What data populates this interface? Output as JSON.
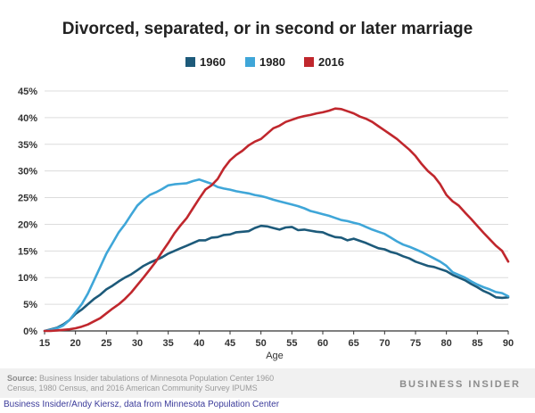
{
  "chart_data": {
    "type": "line",
    "title": "Divorced, separated, or in second or later marriage",
    "xlabel": "Age",
    "ylabel": "",
    "xlim": [
      15,
      90
    ],
    "ylim": [
      0,
      45
    ],
    "xticks": [
      15,
      20,
      25,
      30,
      35,
      40,
      45,
      50,
      55,
      60,
      65,
      70,
      75,
      80,
      85,
      90
    ],
    "yticks": [
      0,
      5,
      10,
      15,
      20,
      25,
      30,
      35,
      40,
      45
    ],
    "ytick_labels": [
      "0%",
      "5%",
      "10%",
      "15%",
      "20%",
      "25%",
      "30%",
      "35%",
      "40%",
      "45%"
    ],
    "legend_position": "top-center",
    "grid": "horizontal",
    "series": [
      {
        "name": "1960",
        "color": "#1d5a7a",
        "x": [
          15,
          16,
          17,
          18,
          19,
          20,
          21,
          22,
          23,
          24,
          25,
          26,
          27,
          28,
          29,
          30,
          31,
          32,
          33,
          34,
          35,
          36,
          37,
          38,
          39,
          40,
          41,
          42,
          43,
          44,
          45,
          46,
          47,
          48,
          49,
          50,
          51,
          52,
          53,
          54,
          55,
          56,
          57,
          58,
          59,
          60,
          61,
          62,
          63,
          64,
          65,
          66,
          67,
          68,
          69,
          70,
          71,
          72,
          73,
          74,
          75,
          76,
          77,
          78,
          79,
          80,
          81,
          82,
          83,
          84,
          85,
          86,
          87,
          88,
          89,
          90
        ],
        "values": [
          0.0,
          0.3,
          0.6,
          1.2,
          2.0,
          3.2,
          4.0,
          5.0,
          6.0,
          6.8,
          7.8,
          8.5,
          9.3,
          10.0,
          10.6,
          11.4,
          12.2,
          12.8,
          13.3,
          13.8,
          14.5,
          15.0,
          15.5,
          16.0,
          16.5,
          17.0,
          17.0,
          17.5,
          17.6,
          18.0,
          18.1,
          18.5,
          18.6,
          18.7,
          19.3,
          19.7,
          19.6,
          19.3,
          19.0,
          19.4,
          19.5,
          18.9,
          19.0,
          18.8,
          18.6,
          18.5,
          18.0,
          17.6,
          17.5,
          17.0,
          17.3,
          16.9,
          16.5,
          16.0,
          15.5,
          15.3,
          14.8,
          14.5,
          14.0,
          13.6,
          13.0,
          12.6,
          12.2,
          12.0,
          11.6,
          11.2,
          10.5,
          10.0,
          9.5,
          8.8,
          8.2,
          7.5,
          7.0,
          6.3,
          6.2,
          6.3
        ]
      },
      {
        "name": "1980",
        "color": "#3fa6d8",
        "x": [
          15,
          16,
          17,
          18,
          19,
          20,
          21,
          22,
          23,
          24,
          25,
          26,
          27,
          28,
          29,
          30,
          31,
          32,
          33,
          34,
          35,
          36,
          37,
          38,
          39,
          40,
          41,
          42,
          43,
          44,
          45,
          46,
          47,
          48,
          49,
          50,
          51,
          52,
          53,
          54,
          55,
          56,
          57,
          58,
          59,
          60,
          61,
          62,
          63,
          64,
          65,
          66,
          67,
          68,
          69,
          70,
          71,
          72,
          73,
          74,
          75,
          76,
          77,
          78,
          79,
          80,
          81,
          82,
          83,
          84,
          85,
          86,
          87,
          88,
          89,
          90
        ],
        "values": [
          0.0,
          0.2,
          0.5,
          1.0,
          2.0,
          3.5,
          5.0,
          7.0,
          9.5,
          12.0,
          14.5,
          16.5,
          18.5,
          20.0,
          21.8,
          23.5,
          24.6,
          25.5,
          26.0,
          26.6,
          27.3,
          27.5,
          27.6,
          27.7,
          28.1,
          28.4,
          28.0,
          27.6,
          27.0,
          26.7,
          26.5,
          26.2,
          26.0,
          25.8,
          25.5,
          25.3,
          25.0,
          24.6,
          24.3,
          24.0,
          23.7,
          23.4,
          23.0,
          22.5,
          22.2,
          21.9,
          21.6,
          21.2,
          20.8,
          20.6,
          20.3,
          20.0,
          19.5,
          19.0,
          18.6,
          18.2,
          17.5,
          16.8,
          16.2,
          15.8,
          15.3,
          14.8,
          14.2,
          13.6,
          13.0,
          12.2,
          11.0,
          10.5,
          10.0,
          9.3,
          8.7,
          8.2,
          7.8,
          7.3,
          7.1,
          6.5
        ]
      },
      {
        "name": "2016",
        "color": "#c0272d",
        "x": [
          15,
          16,
          17,
          18,
          19,
          20,
          21,
          22,
          23,
          24,
          25,
          26,
          27,
          28,
          29,
          30,
          31,
          32,
          33,
          34,
          35,
          36,
          37,
          38,
          39,
          40,
          41,
          42,
          43,
          44,
          45,
          46,
          47,
          48,
          49,
          50,
          51,
          52,
          53,
          54,
          55,
          56,
          57,
          58,
          59,
          60,
          61,
          62,
          63,
          64,
          65,
          66,
          67,
          68,
          69,
          70,
          71,
          72,
          73,
          74,
          75,
          76,
          77,
          78,
          79,
          80,
          81,
          82,
          83,
          84,
          85,
          86,
          87,
          88,
          89,
          90
        ],
        "values": [
          0.0,
          0.0,
          0.1,
          0.2,
          0.3,
          0.5,
          0.8,
          1.2,
          1.8,
          2.4,
          3.3,
          4.2,
          5.0,
          6.0,
          7.2,
          8.6,
          10.0,
          11.5,
          13.0,
          14.8,
          16.5,
          18.3,
          19.8,
          21.2,
          23.0,
          24.8,
          26.5,
          27.3,
          28.5,
          30.5,
          32.0,
          33.0,
          33.8,
          34.8,
          35.5,
          36.0,
          37.0,
          38.0,
          38.5,
          39.2,
          39.6,
          40.0,
          40.3,
          40.5,
          40.8,
          41.0,
          41.3,
          41.7,
          41.6,
          41.2,
          40.8,
          40.2,
          39.8,
          39.2,
          38.4,
          37.6,
          36.8,
          36.0,
          35.0,
          34.0,
          32.8,
          31.3,
          30.0,
          29.0,
          27.5,
          25.5,
          24.3,
          23.5,
          22.2,
          21.0,
          19.7,
          18.4,
          17.2,
          16.0,
          15.0,
          13.0
        ]
      }
    ]
  },
  "footer": {
    "source_label": "Source:",
    "source_text": " Business Insider tabulations of Minnesota Population Center 1960 Census, 1980 Census, and 2016 American Community Survey IPUMS",
    "brand": "BUSINESS INSIDER",
    "credit": "Business Insider/Andy Kiersz, data from Minnesota Population Center"
  }
}
